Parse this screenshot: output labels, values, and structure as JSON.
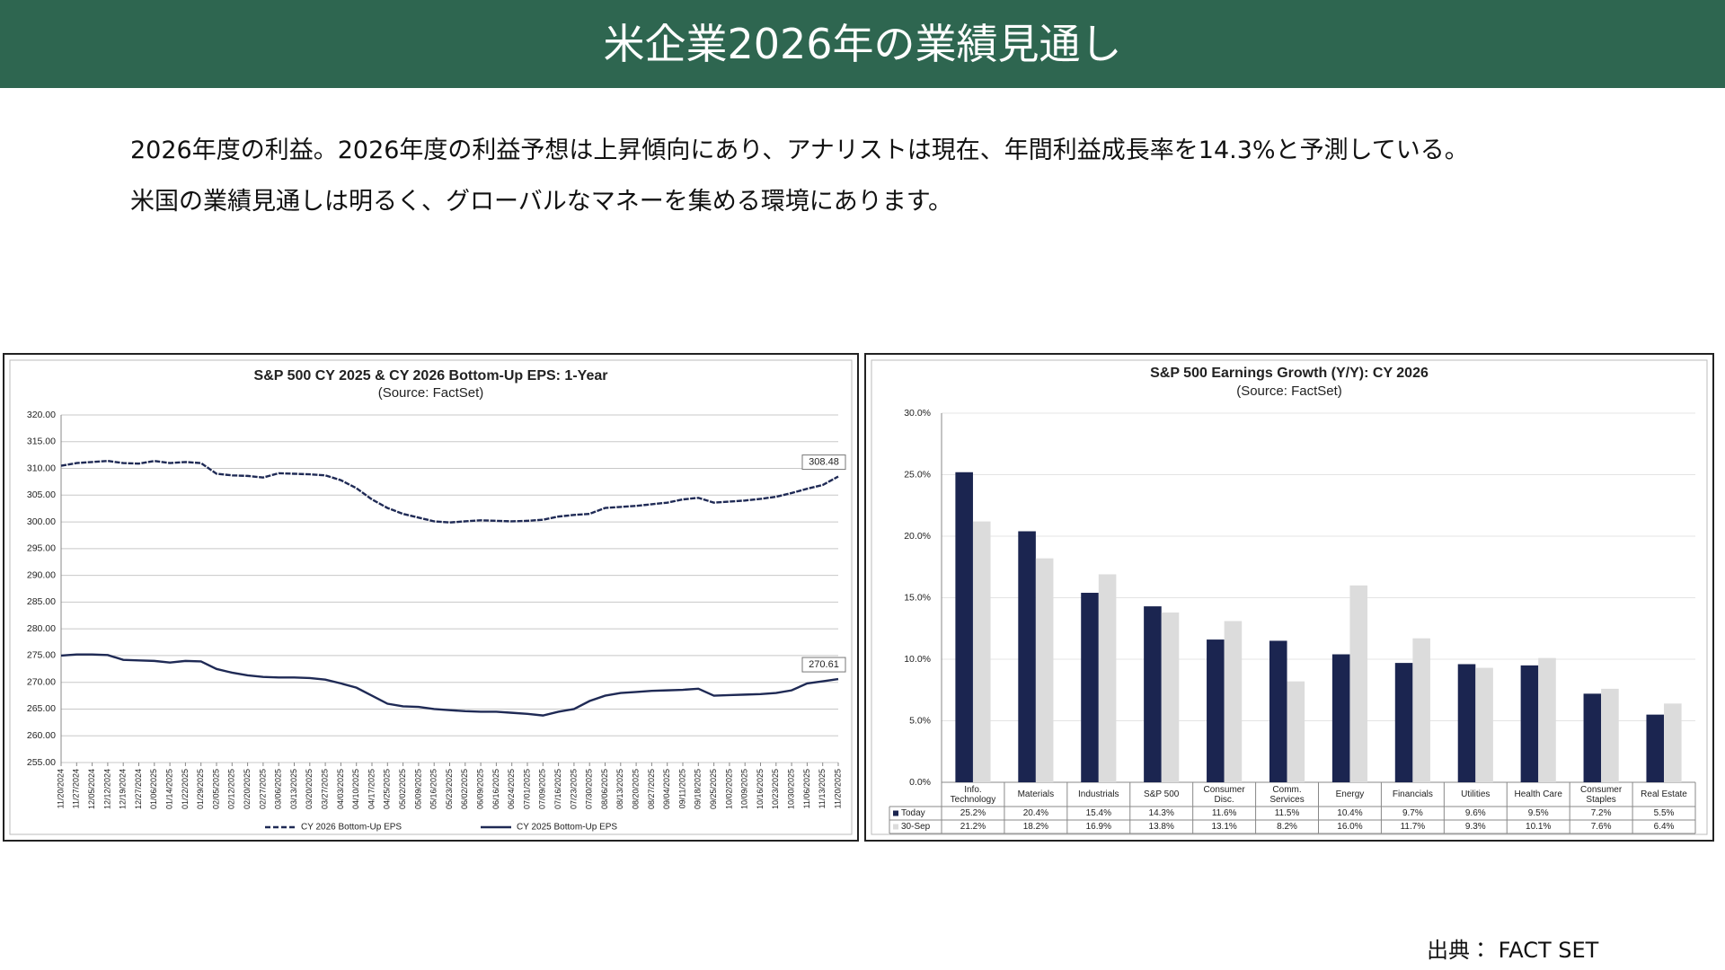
{
  "header": {
    "title": "米企業2026年の業績見通し"
  },
  "body": {
    "lines": [
      "2026年度の利益。2026年度の利益予想は上昇傾向にあり、アナリストは現在、年間利益成長率を14.3%と予測している。",
      "米国の業績見通しは明るく、グローバルなマネーを集める環境にあります。"
    ]
  },
  "chart_data": [
    {
      "type": "line",
      "title": "S&P 500 CY 2025 & CY 2026 Bottom-Up EPS: 1-Year",
      "subtitle": "(Source: FactSet)",
      "categories": [
        "11/20/2024",
        "11/27/2024",
        "12/05/2024",
        "12/12/2024",
        "12/19/2024",
        "12/27/2024",
        "01/06/2025",
        "01/14/2025",
        "01/22/2025",
        "01/29/2025",
        "02/05/2025",
        "02/12/2025",
        "02/20/2025",
        "02/27/2025",
        "03/06/2025",
        "03/13/2025",
        "03/20/2025",
        "03/27/2025",
        "04/03/2025",
        "04/10/2025",
        "04/17/2025",
        "04/25/2025",
        "05/02/2025",
        "05/09/2025",
        "05/16/2025",
        "05/23/2025",
        "06/02/2025",
        "06/09/2025",
        "06/16/2025",
        "06/24/2025",
        "07/01/2025",
        "07/09/2025",
        "07/16/2025",
        "07/23/2025",
        "07/30/2025",
        "08/06/2025",
        "08/13/2025",
        "08/20/2025",
        "08/27/2025",
        "09/04/2025",
        "09/11/2025",
        "09/18/2025",
        "09/25/2025",
        "10/02/2025",
        "10/09/2025",
        "10/16/2025",
        "10/23/2025",
        "10/30/2025",
        "11/06/2025",
        "11/13/2025",
        "11/20/2025"
      ],
      "series": [
        {
          "name": "CY 2026 Bottom-Up EPS",
          "color": "#1f2a55",
          "line_style": "dashed",
          "values": [
            310.5,
            311.0,
            311.2,
            311.4,
            311.0,
            310.9,
            311.4,
            311.0,
            311.2,
            311.0,
            309.0,
            308.7,
            308.6,
            308.3,
            309.1,
            309.0,
            308.9,
            308.7,
            307.8,
            306.3,
            304.2,
            302.6,
            301.5,
            300.8,
            300.1,
            299.9,
            300.1,
            300.3,
            300.2,
            300.1,
            300.2,
            300.4,
            301.0,
            301.3,
            301.5,
            302.6,
            302.8,
            303.0,
            303.3,
            303.6,
            304.2,
            304.5,
            303.6,
            303.8,
            304.0,
            304.3,
            304.7,
            305.4,
            306.2,
            306.9,
            308.48
          ]
        },
        {
          "name": "CY 2025 Bottom-Up EPS",
          "color": "#1f2a55",
          "line_style": "solid",
          "values": [
            275.0,
            275.2,
            275.2,
            275.1,
            274.2,
            274.1,
            274.0,
            273.7,
            274.0,
            273.9,
            272.5,
            271.8,
            271.3,
            271.0,
            270.9,
            270.9,
            270.8,
            270.5,
            269.8,
            269.0,
            267.5,
            266.0,
            265.5,
            265.4,
            265.0,
            264.8,
            264.6,
            264.5,
            264.5,
            264.3,
            264.1,
            263.8,
            264.5,
            265.0,
            266.5,
            267.5,
            268.0,
            268.2,
            268.4,
            268.5,
            268.6,
            268.8,
            267.5,
            267.6,
            267.7,
            267.8,
            268.0,
            268.5,
            269.8,
            270.2,
            270.61
          ]
        }
      ],
      "ylim": [
        255,
        320
      ],
      "yticks": [
        {
          "value": 255,
          "label": "255.00"
        },
        {
          "value": 260,
          "label": "260.00"
        },
        {
          "value": 265,
          "label": "265.00"
        },
        {
          "value": 270,
          "label": "270.00"
        },
        {
          "value": 275,
          "label": "275.00"
        },
        {
          "value": 280,
          "label": "280.00"
        },
        {
          "value": 285,
          "label": "285.00"
        },
        {
          "value": 290,
          "label": "290.00"
        },
        {
          "value": 295,
          "label": "295.00"
        },
        {
          "value": 300,
          "label": "300.00"
        },
        {
          "value": 305,
          "label": "305.00"
        },
        {
          "value": 310,
          "label": "310.00"
        },
        {
          "value": 315,
          "label": "315.00"
        },
        {
          "value": 320,
          "label": "320.00"
        }
      ],
      "grid": true,
      "legend": "bottom"
    },
    {
      "type": "bar",
      "title": "S&P 500 Earnings Growth (Y/Y): CY 2026",
      "subtitle": "(Source: FactSet)",
      "categories": [
        "Info. Technology",
        "Materials",
        "Industrials",
        "S&P 500",
        "Consumer Disc.",
        "Comm. Services",
        "Energy",
        "Financials",
        "Utilities",
        "Health Care",
        "Consumer Staples",
        "Real Estate"
      ],
      "series": [
        {
          "name": "Today",
          "color": "#1b2550",
          "values": [
            25.2,
            20.4,
            15.4,
            14.3,
            11.6,
            11.5,
            10.4,
            9.7,
            9.6,
            9.5,
            7.2,
            5.5
          ],
          "value_labels": [
            "25.2%",
            "20.4%",
            "15.4%",
            "14.3%",
            "11.6%",
            "11.5%",
            "10.4%",
            "9.7%",
            "9.6%",
            "9.5%",
            "7.2%",
            "5.5%"
          ]
        },
        {
          "name": "30-Sep",
          "color": "#dcdcdc",
          "values": [
            21.2,
            18.2,
            16.9,
            13.8,
            13.1,
            8.2,
            16.0,
            11.7,
            9.3,
            10.1,
            7.6,
            6.4
          ],
          "value_labels": [
            "21.2%",
            "18.2%",
            "16.9%",
            "13.8%",
            "13.1%",
            "8.2%",
            "16.0%",
            "11.7%",
            "9.3%",
            "10.1%",
            "7.6%",
            "6.4%"
          ]
        }
      ],
      "ylim": [
        0,
        30
      ],
      "yticks": [
        {
          "value": 0,
          "label": "0.0%"
        },
        {
          "value": 5,
          "label": "5.0%"
        },
        {
          "value": 10,
          "label": "10.0%"
        },
        {
          "value": 15,
          "label": "15.0%"
        },
        {
          "value": 20,
          "label": "20.0%"
        },
        {
          "value": 25,
          "label": "25.0%"
        },
        {
          "value": 30,
          "label": "30.0%"
        }
      ],
      "grid": true,
      "legend": "table"
    }
  ],
  "source": "出典： FACT SET"
}
